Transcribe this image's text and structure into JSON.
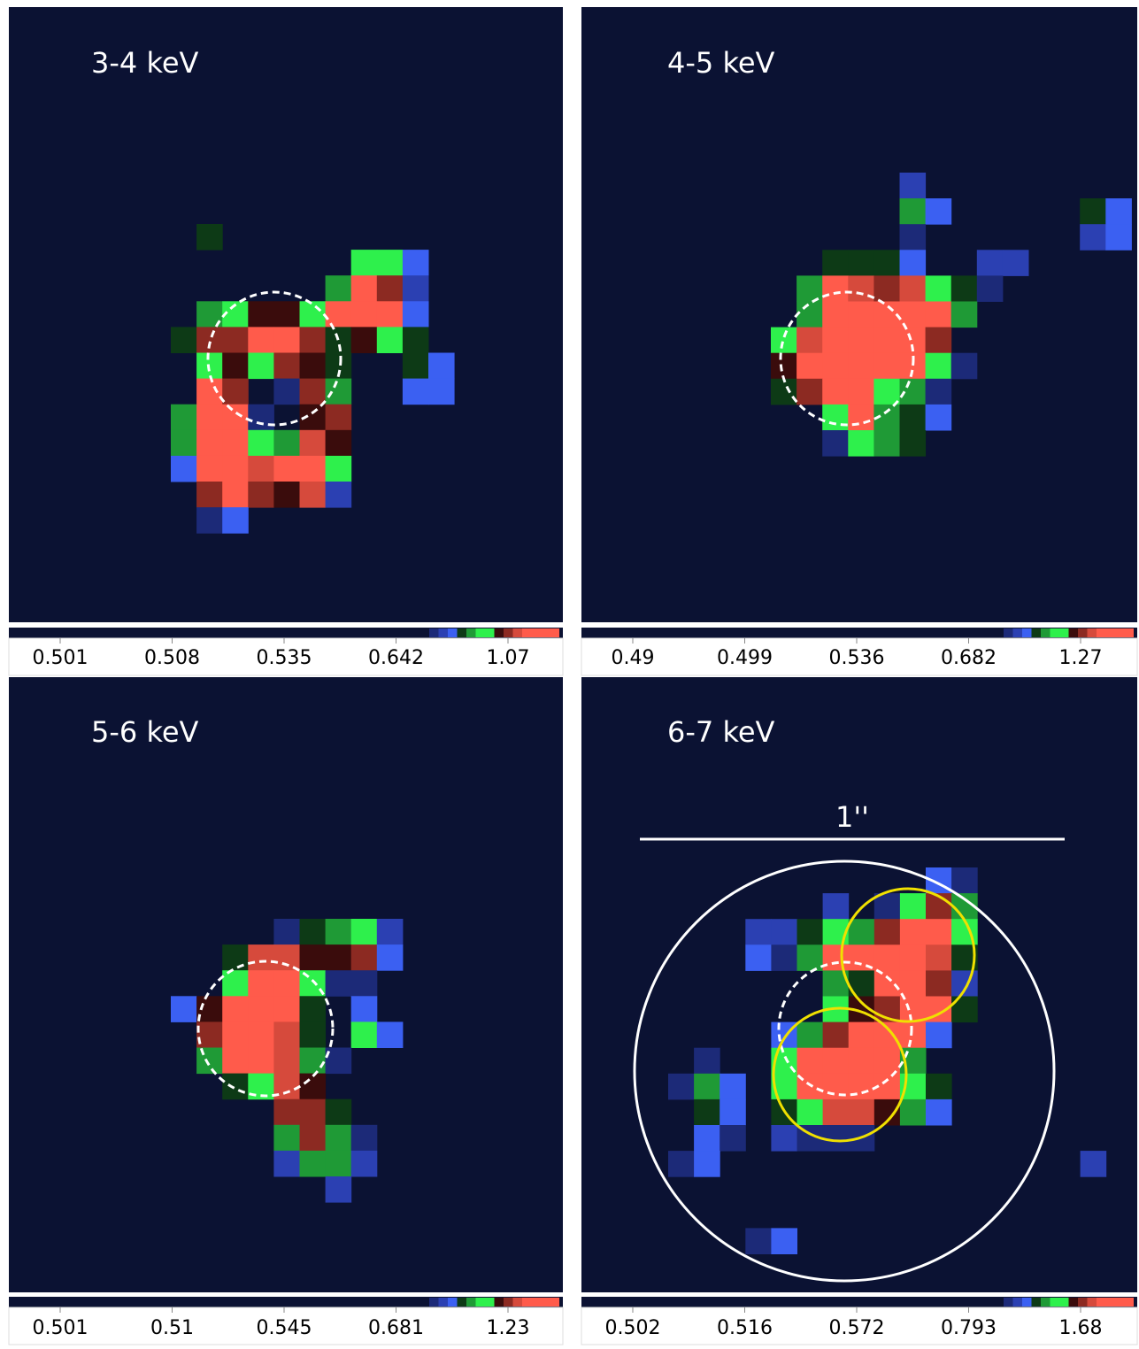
{
  "panels": [
    {
      "label": "3-4 keV",
      "colorbar_ticks": [
        "0.501",
        "0.508",
        "0.535",
        "0.642",
        "1.07"
      ]
    },
    {
      "label": "4-5 keV",
      "colorbar_ticks": [
        "0.49",
        "0.499",
        "0.536",
        "0.682",
        "1.27"
      ]
    },
    {
      "label": "5-6 keV",
      "colorbar_ticks": [
        "0.501",
        "0.51",
        "0.545",
        "0.681",
        "1.23"
      ]
    },
    {
      "label": "6-7 keV",
      "colorbar_ticks": [
        "0.502",
        "0.516",
        "0.572",
        "0.793",
        "1.68"
      ]
    }
  ],
  "scale_bar_label": "1''"
}
